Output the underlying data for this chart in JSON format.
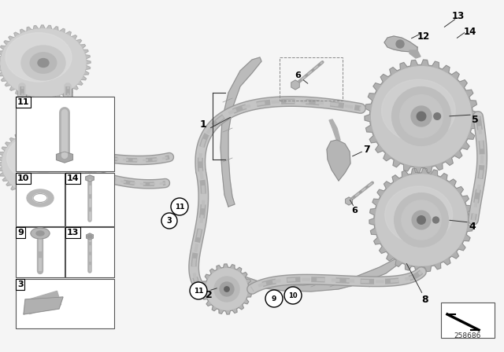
{
  "background_color": "#f5f5f5",
  "fig_width": 6.4,
  "fig_height": 4.48,
  "dpi": 100,
  "part_number": "258686",
  "gear_gray": "#c0c0c0",
  "gear_dark": "#909090",
  "gear_light": "#d8d8d8",
  "chain_gray": "#c8c8c8",
  "guide_gray": "#b0b0b0",
  "guide_dark": "#989898",
  "line_color": "#444444",
  "text_color": "#111111",
  "box_edge": "#555555"
}
